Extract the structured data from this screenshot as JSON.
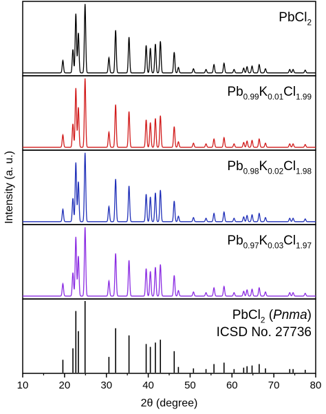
{
  "chart_data": {
    "type": "line",
    "xlabel": "2θ (degree)",
    "ylabel": "Intensity (a. u.)",
    "xlim": [
      10,
      80
    ],
    "xticks": [
      10,
      20,
      30,
      40,
      50,
      60,
      70,
      80
    ],
    "grid": false,
    "panels": [
      {
        "kind": "pattern",
        "color": "#000000",
        "label_parts": [
          {
            "text": "PbCl",
            "style": "normal"
          },
          {
            "text": "2",
            "style": "sub"
          }
        ]
      },
      {
        "kind": "pattern",
        "color": "#d11a1a",
        "label_parts": [
          {
            "text": "Pb",
            "style": "normal"
          },
          {
            "text": "0.99",
            "style": "sub"
          },
          {
            "text": "K",
            "style": "normal"
          },
          {
            "text": "0.01",
            "style": "sub"
          },
          {
            "text": "Cl",
            "style": "normal"
          },
          {
            "text": "1.99",
            "style": "sub"
          }
        ]
      },
      {
        "kind": "pattern",
        "color": "#1f2fb8",
        "label_parts": [
          {
            "text": "Pb",
            "style": "normal"
          },
          {
            "text": "0.98",
            "style": "sub"
          },
          {
            "text": "K",
            "style": "normal"
          },
          {
            "text": "0.02",
            "style": "sub"
          },
          {
            "text": "Cl",
            "style": "normal"
          },
          {
            "text": "1.98",
            "style": "sub"
          }
        ]
      },
      {
        "kind": "pattern",
        "color": "#8a2be2",
        "label_parts": [
          {
            "text": "Pb",
            "style": "normal"
          },
          {
            "text": "0.97",
            "style": "sub"
          },
          {
            "text": "K",
            "style": "normal"
          },
          {
            "text": "0.03",
            "style": "sub"
          },
          {
            "text": "Cl",
            "style": "normal"
          },
          {
            "text": "1.97",
            "style": "sub"
          }
        ]
      },
      {
        "kind": "reference",
        "color": "#000000",
        "label_parts": [
          {
            "text": "PbCl",
            "style": "normal"
          },
          {
            "text": "2",
            "style": "sub"
          },
          {
            "text": " (",
            "style": "normal"
          },
          {
            "text": "Pnma",
            "style": "italic"
          },
          {
            "text": ")",
            "style": "normal"
          }
        ],
        "label_line2": "ICSD No. 27736"
      }
    ],
    "peaks": [
      {
        "x": 19.6,
        "y": 0.18
      },
      {
        "x": 22.0,
        "y": 0.34
      },
      {
        "x": 22.7,
        "y": 0.86
      },
      {
        "x": 23.3,
        "y": 0.58
      },
      {
        "x": 24.9,
        "y": 1.0
      },
      {
        "x": 30.6,
        "y": 0.22
      },
      {
        "x": 32.2,
        "y": 0.62
      },
      {
        "x": 35.4,
        "y": 0.52
      },
      {
        "x": 39.5,
        "y": 0.4
      },
      {
        "x": 40.5,
        "y": 0.36
      },
      {
        "x": 41.7,
        "y": 0.42
      },
      {
        "x": 42.9,
        "y": 0.46
      },
      {
        "x": 46.2,
        "y": 0.3
      },
      {
        "x": 47.2,
        "y": 0.08
      },
      {
        "x": 50.8,
        "y": 0.06
      },
      {
        "x": 53.8,
        "y": 0.05
      },
      {
        "x": 55.7,
        "y": 0.12
      },
      {
        "x": 58.1,
        "y": 0.14
      },
      {
        "x": 60.5,
        "y": 0.05
      },
      {
        "x": 62.8,
        "y": 0.07
      },
      {
        "x": 63.6,
        "y": 0.09
      },
      {
        "x": 64.8,
        "y": 0.1
      },
      {
        "x": 66.5,
        "y": 0.12
      },
      {
        "x": 68.0,
        "y": 0.06
      },
      {
        "x": 73.8,
        "y": 0.05
      },
      {
        "x": 74.6,
        "y": 0.05
      },
      {
        "x": 77.5,
        "y": 0.04
      }
    ]
  }
}
